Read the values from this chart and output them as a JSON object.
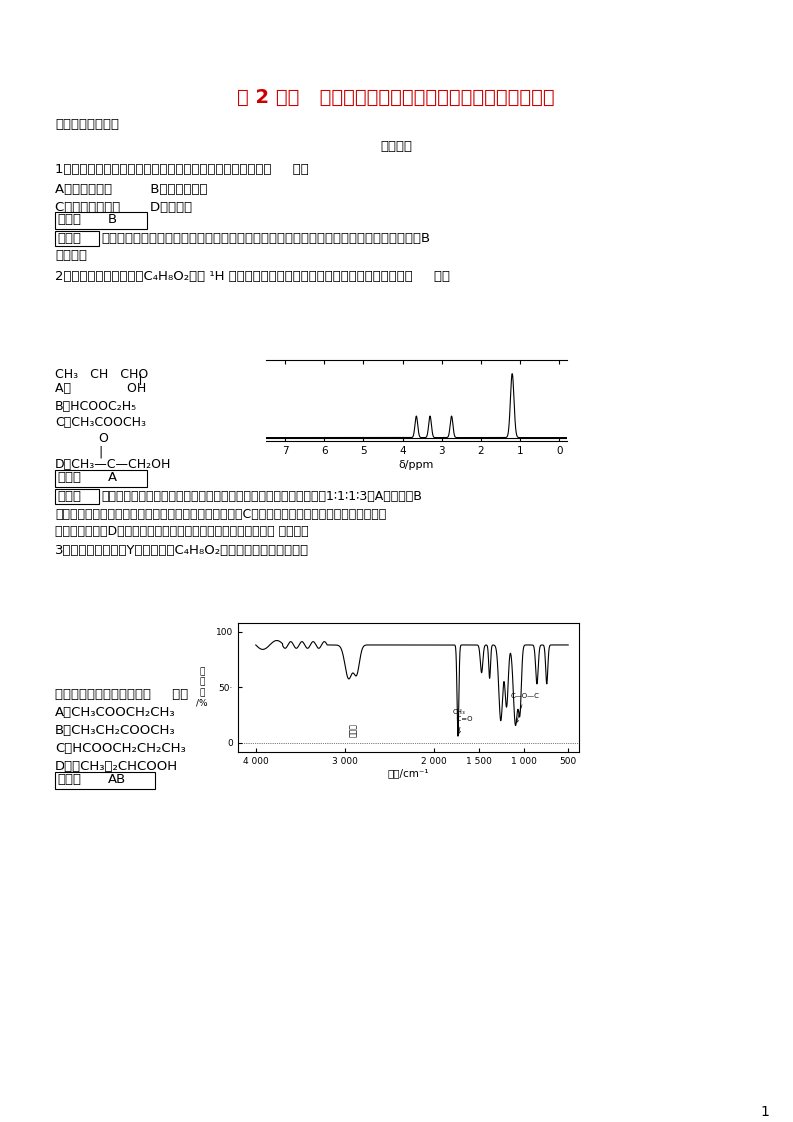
{
  "title": "第 2 课时   有机化合物结构的研究与有机化学反应的研究",
  "title_color": "#cc0000",
  "bg_color": "#ffffff",
  "text_color": "#000000",
  "section1": "课后训练巩固提升",
  "section2": "基础巩固",
  "q1": "1．能用来分析分子中的化学键及官能团信息的物理方法是（     ）。",
  "q1_A": "A．铜丝燃烧法         B．红外光谱法",
  "q1_C": "C．核磁共振波谱       D．质谱法",
  "ans1_label": "答案：",
  "ans1_val": "B",
  "jiexi_label": "解析：",
  "jiexi1a": "不同的官能团红外光谱图不同，因此可以用红外光谱法分析分子中的化学键和官能团信息，B",
  "jiexi1b": "项正确。",
  "q2": "2．某有机物的分子式为C₄H₈O₂，其 ¹H 核磁共振谱图如下所示，则该有机物的结构简式为（     ）。",
  "q2_A_top": "CH₃   CH   CHO",
  "q2_A_bot": "A．              OH",
  "q2_B": "B．HCOOC₂H₅",
  "q2_C": "C．CH₃COOCH₃",
  "q2_D_top": "           O",
  "q2_D_mid": "           |",
  "q2_D_bot": "D．CH₃—C—CH₂OH",
  "ans2_label": "答案：",
  "ans2_val": "A",
  "jiexi2_label": "解析：",
  "jiexi2a": "由图示知，该有机物分子中有四种不同化学环境的氢原子，且比例为1∶1∶1∶3，A项符合；B",
  "jiexi2b": "项有机物分子中有三种不同化学环境的氢原子，不符合；C项有机物分子中有两种不同化学环境的氢",
  "jiexi2c": "原子，不符合；D项有机物分子中有三种不同化学环境的氢原子， 不符合。",
  "q3": "3．（双选）有机物Y的分子式为C₄H₈O₂，其红外光谱如图所示：",
  "q3_then": "则该有机物可能的结构为（     ）。",
  "q3_A": "A．CH₃COOCH₂CH₃",
  "q3_B": "B．CH₃CH₂COOCH₃",
  "q3_C": "C．HCOOCH₂CH₂CH₃",
  "q3_D": "D．（CH₃）₂CHCOOH",
  "ans3_label": "答案：",
  "ans3_val": "AB"
}
